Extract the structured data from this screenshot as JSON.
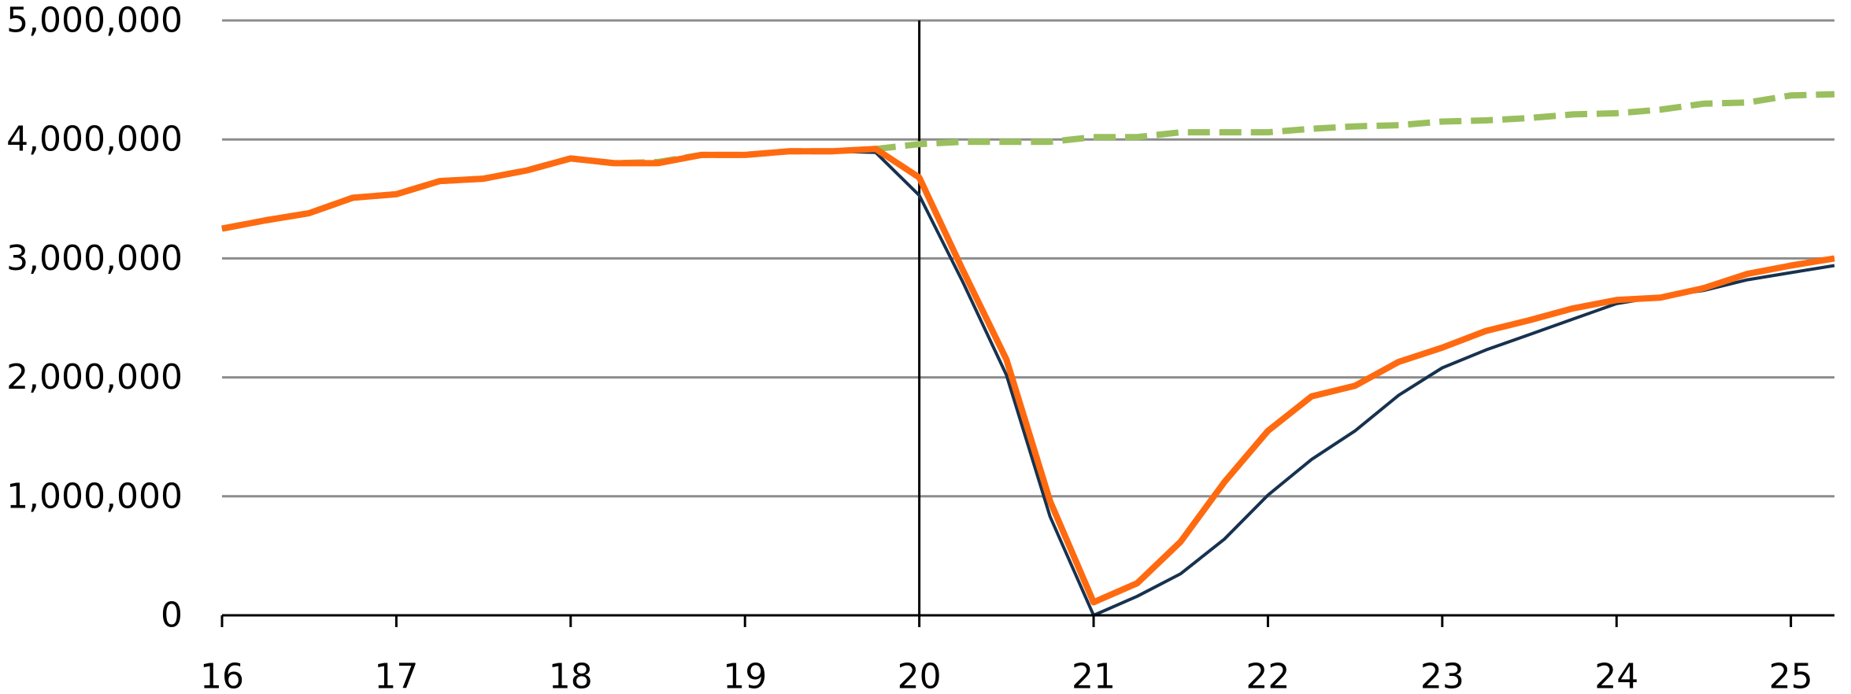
{
  "chart_data": {
    "type": "line",
    "x_ticks": [
      16,
      17,
      18,
      19,
      20,
      21,
      22,
      23,
      24,
      25
    ],
    "y_ticks": [
      {
        "value": 0,
        "label": "0"
      },
      {
        "value": 1000000,
        "label": "1,000,000"
      },
      {
        "value": 2000000,
        "label": "2,000,000"
      },
      {
        "value": 3000000,
        "label": "3,000,000"
      },
      {
        "value": 4000000,
        "label": "4,000,000"
      },
      {
        "value": 5000000,
        "label": "5,000,000"
      }
    ],
    "xlim": [
      16,
      25.25
    ],
    "ylim": [
      0,
      5000000
    ],
    "grid": "horizontal",
    "vertical_marker_x": 20,
    "series": [
      {
        "color": "#9ABF5E",
        "style": "dashed",
        "x": [
          16,
          16.25,
          16.5,
          16.75,
          17,
          17.25,
          17.5,
          17.75,
          18,
          18.25,
          18.5,
          18.75,
          19,
          19.25,
          19.5,
          19.75,
          20,
          20.25,
          20.5,
          20.75,
          21,
          21.25,
          21.5,
          21.75,
          22,
          22.25,
          22.5,
          22.75,
          23,
          23.25,
          23.5,
          23.75,
          24,
          24.25,
          24.5,
          24.75,
          25,
          25.25
        ],
        "y": [
          3250000,
          3320000,
          3380000,
          3510000,
          3540000,
          3650000,
          3670000,
          3740000,
          3840000,
          3800000,
          3810000,
          3870000,
          3870000,
          3900000,
          3900000,
          3920000,
          3960000,
          3980000,
          3980000,
          3980000,
          4020000,
          4020000,
          4060000,
          4060000,
          4060000,
          4090000,
          4110000,
          4120000,
          4150000,
          4160000,
          4180000,
          4210000,
          4220000,
          4250000,
          4300000,
          4310000,
          4370000,
          4380000
        ]
      },
      {
        "color": "#17324F",
        "style": "solid-thin",
        "x": [
          16,
          16.25,
          16.5,
          16.75,
          17,
          17.25,
          17.5,
          17.75,
          18,
          18.25,
          18.5,
          18.75,
          19,
          19.25,
          19.5,
          19.75,
          20,
          20.25,
          20.5,
          20.75,
          21,
          21.25,
          21.5,
          21.75,
          22,
          22.25,
          22.5,
          22.75,
          23,
          23.25,
          23.5,
          23.75,
          24,
          24.25,
          24.5,
          24.75,
          25,
          25.25
        ],
        "y": [
          3250000,
          3320000,
          3380000,
          3510000,
          3540000,
          3650000,
          3670000,
          3740000,
          3840000,
          3800000,
          3810000,
          3870000,
          3870000,
          3900000,
          3900000,
          3890000,
          3530000,
          2800000,
          2020000,
          830000,
          0,
          160000,
          350000,
          640000,
          1010000,
          1310000,
          1550000,
          1850000,
          2080000,
          2230000,
          2360000,
          2490000,
          2620000,
          2680000,
          2730000,
          2820000,
          2880000,
          2940000
        ]
      },
      {
        "color": "#FF6A10",
        "style": "solid-thick",
        "x": [
          16,
          16.25,
          16.5,
          16.75,
          17,
          17.25,
          17.5,
          17.75,
          18,
          18.25,
          18.5,
          18.75,
          19,
          19.25,
          19.5,
          19.75,
          20,
          20.25,
          20.5,
          20.75,
          21,
          21.25,
          21.5,
          21.75,
          22,
          22.25,
          22.5,
          22.75,
          23,
          23.25,
          23.5,
          23.75,
          24,
          24.25,
          24.5,
          24.75,
          25,
          25.25
        ],
        "y": [
          3250000,
          3320000,
          3380000,
          3510000,
          3540000,
          3650000,
          3670000,
          3740000,
          3840000,
          3800000,
          3800000,
          3870000,
          3870000,
          3900000,
          3900000,
          3920000,
          3680000,
          2900000,
          2150000,
          960000,
          110000,
          270000,
          620000,
          1120000,
          1550000,
          1840000,
          1930000,
          2130000,
          2250000,
          2390000,
          2480000,
          2580000,
          2650000,
          2670000,
          2750000,
          2870000,
          2940000,
          3000000
        ]
      }
    ]
  }
}
